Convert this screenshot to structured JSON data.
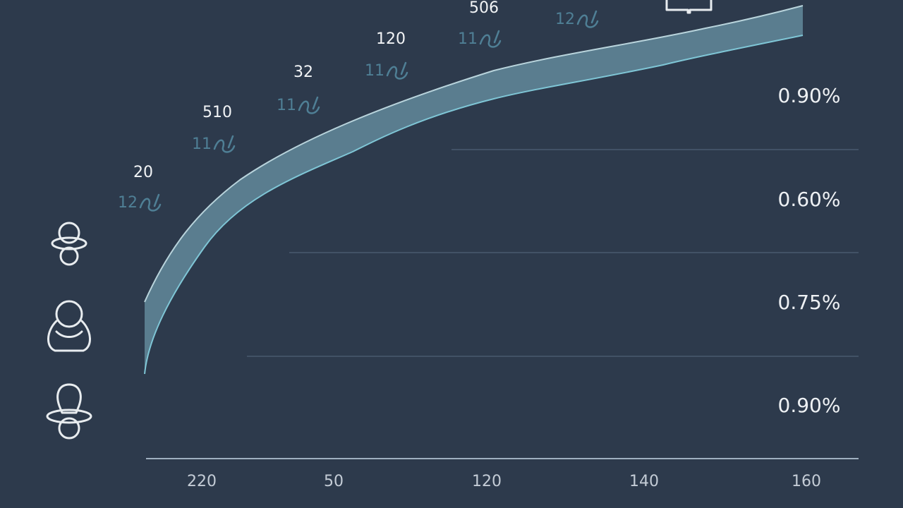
{
  "annotations": [
    {
      "number": "20",
      "code": "12"
    },
    {
      "number": "510",
      "code": "11"
    },
    {
      "number": "32",
      "code": "11"
    },
    {
      "number": "120",
      "code": "11"
    },
    {
      "number": "506",
      "code": "11"
    },
    {
      "code": "12"
    }
  ],
  "right_labels": [
    "0.90%",
    "0.60%",
    "0.75%",
    "0.90%"
  ],
  "x_labels": [
    "220",
    "50",
    "120",
    "140",
    "160"
  ]
}
